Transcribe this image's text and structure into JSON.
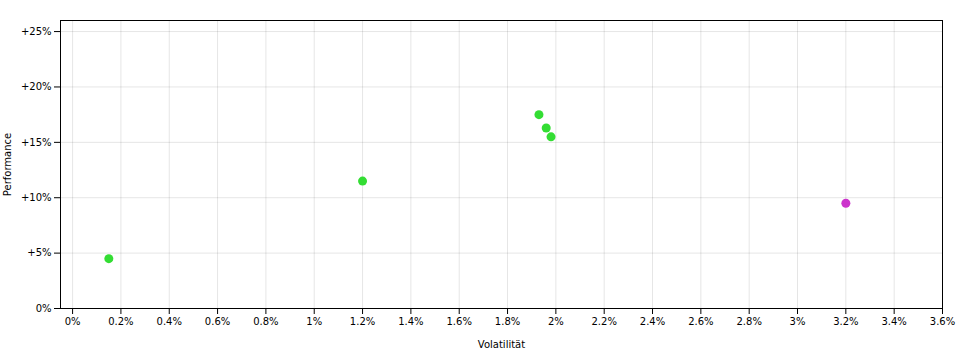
{
  "chart_data": {
    "type": "scatter",
    "xlabel": "Volatilität",
    "ylabel": "Performance",
    "series": [
      {
        "color": "#33dd33",
        "x": [
          0.0015,
          0.012,
          0.0193,
          0.0196,
          0.0198
        ],
        "values": [
          0.045,
          0.115,
          0.175,
          0.163,
          0.155
        ]
      },
      {
        "color": "#cc33cc",
        "x": [
          0.032
        ],
        "values": [
          0.095
        ]
      }
    ],
    "xlim": [
      -0.0005,
      0.036
    ],
    "ylim": [
      0.0,
      0.26
    ],
    "xticks": [
      {
        "value": 0.0,
        "label": "0%"
      },
      {
        "value": 0.002,
        "label": "0.2%"
      },
      {
        "value": 0.004,
        "label": "0.4%"
      },
      {
        "value": 0.006,
        "label": "0.6%"
      },
      {
        "value": 0.008,
        "label": "0.8%"
      },
      {
        "value": 0.01,
        "label": "1%"
      },
      {
        "value": 0.012,
        "label": "1.2%"
      },
      {
        "value": 0.014,
        "label": "1.4%"
      },
      {
        "value": 0.016,
        "label": "1.6%"
      },
      {
        "value": 0.018,
        "label": "1.8%"
      },
      {
        "value": 0.02,
        "label": "2%"
      },
      {
        "value": 0.022,
        "label": "2.2%"
      },
      {
        "value": 0.024,
        "label": "2.4%"
      },
      {
        "value": 0.026,
        "label": "2.6%"
      },
      {
        "value": 0.028,
        "label": "2.8%"
      },
      {
        "value": 0.03,
        "label": "3%"
      },
      {
        "value": 0.032,
        "label": "3.2%"
      },
      {
        "value": 0.034,
        "label": "3.4%"
      },
      {
        "value": 0.036,
        "label": "3.6%"
      }
    ],
    "yticks": [
      {
        "value": 0.0,
        "label": "0%"
      },
      {
        "value": 0.05,
        "label": "+5%"
      },
      {
        "value": 0.1,
        "label": "+10%"
      },
      {
        "value": 0.15,
        "label": "+15%"
      },
      {
        "value": 0.2,
        "label": "+20%"
      },
      {
        "value": 0.25,
        "label": "+25%"
      }
    ],
    "grid": true
  }
}
